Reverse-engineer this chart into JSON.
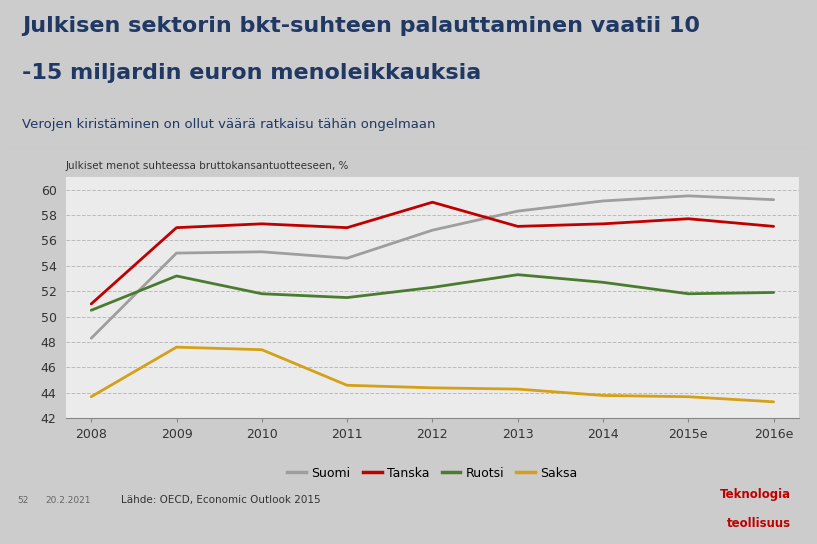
{
  "title_line1": "Julkisen sektorin bkt-suhteen palauttaminen vaatii 10",
  "title_line2": "-15 miljardin euron menoleikkauksia",
  "subtitle": "Verojen kiristäminen on ollut väärä ratkaisu tähän ongelmaan",
  "chart_label": "Julkiset menot suhteessa bruttokansantuotteeseen, %",
  "x_labels": [
    "2008",
    "2009",
    "2010",
    "2011",
    "2012",
    "2013",
    "2014",
    "2015e",
    "2016e"
  ],
  "ylim": [
    42,
    61
  ],
  "yticks": [
    42,
    44,
    46,
    48,
    50,
    52,
    54,
    56,
    58,
    60
  ],
  "series": {
    "Suomi": [
      48.3,
      55.0,
      55.1,
      54.6,
      56.8,
      58.3,
      59.1,
      59.5,
      59.2
    ],
    "Tanska": [
      51.0,
      57.0,
      57.3,
      57.0,
      59.0,
      57.1,
      57.3,
      57.7,
      57.1
    ],
    "Ruotsi": [
      50.5,
      53.2,
      51.8,
      51.5,
      52.3,
      53.3,
      52.7,
      51.8,
      51.9
    ],
    "Saksa": [
      43.7,
      47.6,
      47.4,
      44.6,
      44.4,
      44.3,
      43.8,
      43.7,
      43.3
    ]
  },
  "colors": {
    "Suomi": "#9E9E9E",
    "Tanska": "#C00000",
    "Ruotsi": "#4A7C2F",
    "Saksa": "#D4A017"
  },
  "title_color": "#1F3864",
  "subtitle_color": "#1F3864",
  "title_bg": "#FFFFFF",
  "chart_bg": "#EBEBEB",
  "chart_border_bg": "#D0D0D0",
  "grid_color": "#BBBBBB",
  "footnote": "Lähde: OECD, Economic Outlook 2015",
  "logo_text1": "Teknologia",
  "logo_text2": "teollisuus",
  "logo_color": "#C00000",
  "page_num": "52",
  "page_date": "20.2.2021"
}
